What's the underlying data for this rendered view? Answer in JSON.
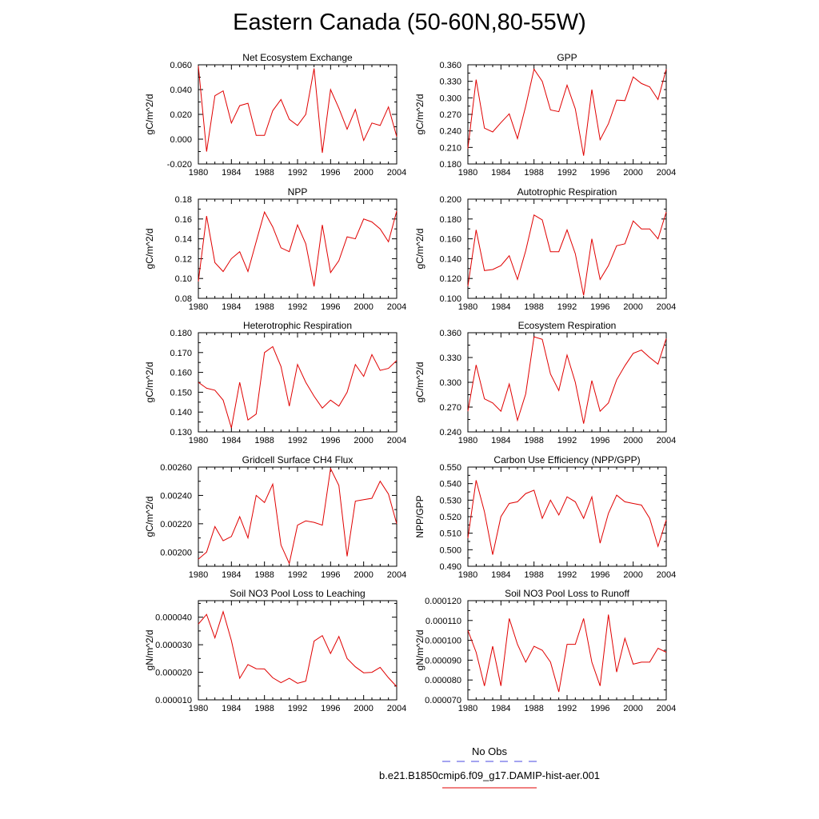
{
  "title": "Eastern Canada (50-60N,80-55W)",
  "legend": {
    "entries": [
      {
        "label": "No Obs",
        "color": "#4a4ae0",
        "dash": true
      },
      {
        "label": "b.e21.B1850cmip6.f09_g17.DAMIP-hist-aer.001",
        "color": "#e00000",
        "dash": false
      }
    ]
  },
  "chart_data": [
    {
      "type": "line",
      "title": "Net Ecosystem Exchange",
      "ylabel": "gC/m^2/d",
      "xlim": [
        1980,
        2004
      ],
      "xticks": [
        "1980",
        "1984",
        "1988",
        "1992",
        "1996",
        "2000",
        "2004"
      ],
      "ylim": [
        -0.02,
        0.06
      ],
      "yticks": [
        "-0.020",
        "0.000",
        "0.020",
        "0.040",
        "0.060"
      ],
      "x": [
        1980,
        1981,
        1982,
        1983,
        1984,
        1985,
        1986,
        1987,
        1988,
        1989,
        1990,
        1991,
        1992,
        1993,
        1994,
        1995,
        1996,
        1997,
        1998,
        1999,
        2000,
        2001,
        2002,
        2003,
        2004
      ],
      "series": [
        {
          "color": "#e00000",
          "values": [
            0.059,
            -0.01,
            0.035,
            0.039,
            0.013,
            0.027,
            0.029,
            0.003,
            0.003,
            0.023,
            0.032,
            0.016,
            0.011,
            0.02,
            0.057,
            -0.011,
            0.04,
            0.025,
            0.008,
            0.024,
            -0.001,
            0.013,
            0.011,
            0.026,
            0.002
          ]
        }
      ]
    },
    {
      "type": "line",
      "title": "GPP",
      "ylabel": "gC/m^2/d",
      "xlim": [
        1980,
        2004
      ],
      "xticks": [
        "1980",
        "1984",
        "1988",
        "1992",
        "1996",
        "2000",
        "2004"
      ],
      "ylim": [
        0.18,
        0.36
      ],
      "yticks": [
        "0.180",
        "0.210",
        "0.240",
        "0.270",
        "0.300",
        "0.330",
        "0.360"
      ],
      "x": [
        1980,
        1981,
        1982,
        1983,
        1984,
        1985,
        1986,
        1987,
        1988,
        1989,
        1990,
        1991,
        1992,
        1993,
        1994,
        1995,
        1996,
        1997,
        1998,
        1999,
        2000,
        2001,
        2002,
        2003,
        2004
      ],
      "series": [
        {
          "color": "#e00000",
          "values": [
            0.208,
            0.333,
            0.245,
            0.238,
            0.255,
            0.271,
            0.226,
            0.285,
            0.352,
            0.33,
            0.278,
            0.275,
            0.323,
            0.28,
            0.195,
            0.315,
            0.224,
            0.253,
            0.296,
            0.295,
            0.338,
            0.326,
            0.32,
            0.297,
            0.352
          ]
        }
      ]
    },
    {
      "type": "line",
      "title": "NPP",
      "ylabel": "gC/m^2/d",
      "xlim": [
        1980,
        2004
      ],
      "xticks": [
        "1980",
        "1984",
        "1988",
        "1992",
        "1996",
        "2000",
        "2004"
      ],
      "ylim": [
        0.08,
        0.18
      ],
      "yticks": [
        "0.08",
        "0.10",
        "0.12",
        "0.14",
        "0.16",
        "0.18"
      ],
      "x": [
        1980,
        1981,
        1982,
        1983,
        1984,
        1985,
        1986,
        1987,
        1988,
        1989,
        1990,
        1991,
        1992,
        1993,
        1994,
        1995,
        1996,
        1997,
        1998,
        1999,
        2000,
        2001,
        2002,
        2003,
        2004
      ],
      "series": [
        {
          "color": "#e00000",
          "values": [
            0.097,
            0.163,
            0.116,
            0.107,
            0.12,
            0.127,
            0.107,
            0.137,
            0.167,
            0.152,
            0.131,
            0.127,
            0.154,
            0.135,
            0.092,
            0.154,
            0.106,
            0.118,
            0.142,
            0.14,
            0.16,
            0.157,
            0.15,
            0.137,
            0.168
          ]
        }
      ]
    },
    {
      "type": "line",
      "title": "Autotrophic Respiration",
      "ylabel": "gC/m^2/d",
      "xlim": [
        1980,
        2004
      ],
      "xticks": [
        "1980",
        "1984",
        "1988",
        "1992",
        "1996",
        "2000",
        "2004"
      ],
      "ylim": [
        0.1,
        0.2
      ],
      "yticks": [
        "0.100",
        "0.120",
        "0.140",
        "0.160",
        "0.180",
        "0.200"
      ],
      "x": [
        1980,
        1981,
        1982,
        1983,
        1984,
        1985,
        1986,
        1987,
        1988,
        1989,
        1990,
        1991,
        1992,
        1993,
        1994,
        1995,
        1996,
        1997,
        1998,
        1999,
        2000,
        2001,
        2002,
        2003,
        2004
      ],
      "series": [
        {
          "color": "#e00000",
          "values": [
            0.112,
            0.169,
            0.128,
            0.129,
            0.133,
            0.143,
            0.119,
            0.148,
            0.184,
            0.179,
            0.147,
            0.147,
            0.169,
            0.145,
            0.103,
            0.16,
            0.119,
            0.133,
            0.153,
            0.155,
            0.178,
            0.17,
            0.17,
            0.16,
            0.187
          ]
        }
      ]
    },
    {
      "type": "line",
      "title": "Heterotrophic Respiration",
      "ylabel": "gC/m^2/d",
      "xlim": [
        1980,
        2004
      ],
      "xticks": [
        "1980",
        "1984",
        "1988",
        "1992",
        "1996",
        "2000",
        "2004"
      ],
      "ylim": [
        0.13,
        0.18
      ],
      "yticks": [
        "0.130",
        "0.140",
        "0.150",
        "0.160",
        "0.170",
        "0.180"
      ],
      "x": [
        1980,
        1981,
        1982,
        1983,
        1984,
        1985,
        1986,
        1987,
        1988,
        1989,
        1990,
        1991,
        1992,
        1993,
        1994,
        1995,
        1996,
        1997,
        1998,
        1999,
        2000,
        2001,
        2002,
        2003,
        2004
      ],
      "series": [
        {
          "color": "#e00000",
          "values": [
            0.155,
            0.152,
            0.151,
            0.146,
            0.132,
            0.155,
            0.136,
            0.139,
            0.17,
            0.173,
            0.163,
            0.143,
            0.164,
            0.155,
            0.148,
            0.142,
            0.146,
            0.143,
            0.15,
            0.164,
            0.158,
            0.169,
            0.161,
            0.162,
            0.166
          ]
        }
      ]
    },
    {
      "type": "line",
      "title": "Ecosystem Respiration",
      "ylabel": "gC/m^2/d",
      "xlim": [
        1980,
        2004
      ],
      "xticks": [
        "1980",
        "1984",
        "1988",
        "1992",
        "1996",
        "2000",
        "2004"
      ],
      "ylim": [
        0.24,
        0.36
      ],
      "yticks": [
        "0.240",
        "0.270",
        "0.300",
        "0.330",
        "0.360"
      ],
      "x": [
        1980,
        1981,
        1982,
        1983,
        1984,
        1985,
        1986,
        1987,
        1988,
        1989,
        1990,
        1991,
        1992,
        1993,
        1994,
        1995,
        1996,
        1997,
        1998,
        1999,
        2000,
        2001,
        2002,
        2003,
        2004
      ],
      "series": [
        {
          "color": "#e00000",
          "values": [
            0.265,
            0.321,
            0.28,
            0.275,
            0.265,
            0.298,
            0.254,
            0.286,
            0.355,
            0.352,
            0.31,
            0.29,
            0.333,
            0.3,
            0.25,
            0.302,
            0.265,
            0.275,
            0.303,
            0.32,
            0.335,
            0.339,
            0.33,
            0.322,
            0.353
          ]
        }
      ]
    },
    {
      "type": "line",
      "title": "Gridcell Surface CH4 Flux",
      "ylabel": "gC/m^2/d",
      "xlim": [
        1980,
        2004
      ],
      "xticks": [
        "1980",
        "1984",
        "1988",
        "1992",
        "1996",
        "2000",
        "2004"
      ],
      "ylim": [
        0.0019,
        0.0026
      ],
      "yticks": [
        "0.00200",
        "0.00220",
        "0.00240",
        "0.00260"
      ],
      "x": [
        1980,
        1981,
        1982,
        1983,
        1984,
        1985,
        1986,
        1987,
        1988,
        1989,
        1990,
        1991,
        1992,
        1993,
        1994,
        1995,
        1996,
        1997,
        1998,
        1999,
        2000,
        2001,
        2002,
        2003,
        2004
      ],
      "series": [
        {
          "color": "#e00000",
          "values": [
            0.00195,
            0.002,
            0.00218,
            0.00208,
            0.00211,
            0.00225,
            0.0021,
            0.0024,
            0.00235,
            0.00248,
            0.00205,
            0.00192,
            0.00219,
            0.00222,
            0.00221,
            0.00219,
            0.00259,
            0.00247,
            0.00197,
            0.00236,
            0.00237,
            0.00238,
            0.0025,
            0.00241,
            0.0022
          ]
        }
      ]
    },
    {
      "type": "line",
      "title": "Carbon Use Efficiency (NPP/GPP)",
      "ylabel": "NPP/GPP",
      "xlim": [
        1980,
        2004
      ],
      "xticks": [
        "1980",
        "1984",
        "1988",
        "1992",
        "1996",
        "2000",
        "2004"
      ],
      "ylim": [
        0.49,
        0.55
      ],
      "yticks": [
        "0.490",
        "0.500",
        "0.510",
        "0.520",
        "0.530",
        "0.540",
        "0.550"
      ],
      "x": [
        1980,
        1981,
        1982,
        1983,
        1984,
        1985,
        1986,
        1987,
        1988,
        1989,
        1990,
        1991,
        1992,
        1993,
        1994,
        1995,
        1996,
        1997,
        1998,
        1999,
        2000,
        2001,
        2002,
        2003,
        2004
      ],
      "series": [
        {
          "color": "#e00000",
          "values": [
            0.507,
            0.542,
            0.523,
            0.497,
            0.52,
            0.528,
            0.529,
            0.534,
            0.536,
            0.519,
            0.53,
            0.521,
            0.532,
            0.529,
            0.519,
            0.532,
            0.504,
            0.522,
            0.533,
            0.529,
            0.528,
            0.527,
            0.519,
            0.502,
            0.518
          ]
        }
      ]
    },
    {
      "type": "line",
      "title": "Soil NO3 Pool Loss to Leaching",
      "ylabel": "gN/m^2/d",
      "xlim": [
        1980,
        2004
      ],
      "xticks": [
        "1980",
        "1984",
        "1988",
        "1992",
        "1996",
        "2000",
        "2004"
      ],
      "ylim": [
        1e-05,
        4.6e-05
      ],
      "yticks": [
        "0.000010",
        "0.000020",
        "0.000030",
        "0.000040"
      ],
      "x": [
        1980,
        1981,
        1982,
        1983,
        1984,
        1985,
        1986,
        1987,
        1988,
        1989,
        1990,
        1991,
        1992,
        1993,
        1994,
        1995,
        1996,
        1997,
        1998,
        1999,
        2000,
        2001,
        2002,
        2003,
        2004
      ],
      "series": [
        {
          "color": "#e00000",
          "values": [
            3.75e-05,
            4.1e-05,
            3.25e-05,
            4.2e-05,
            3.15e-05,
            1.78e-05,
            2.28e-05,
            2.13e-05,
            2.12e-05,
            1.8e-05,
            1.62e-05,
            1.78e-05,
            1.6e-05,
            1.68e-05,
            3.13e-05,
            3.33e-05,
            2.68e-05,
            3.3e-05,
            2.5e-05,
            2.2e-05,
            1.98e-05,
            2e-05,
            2.18e-05,
            1.8e-05,
            1.48e-05
          ]
        }
      ]
    },
    {
      "type": "line",
      "title": "Soil NO3 Pool Loss to Runoff",
      "ylabel": "gN/m^2/d",
      "xlim": [
        1980,
        2004
      ],
      "xticks": [
        "1980",
        "1984",
        "1988",
        "1992",
        "1996",
        "2000",
        "2004"
      ],
      "ylim": [
        7e-05,
        0.00012
      ],
      "yticks": [
        "0.000070",
        "0.000080",
        "0.000090",
        "0.000100",
        "0.000110",
        "0.000120"
      ],
      "x": [
        1980,
        1981,
        1982,
        1983,
        1984,
        1985,
        1986,
        1987,
        1988,
        1989,
        1990,
        1991,
        1992,
        1993,
        1994,
        1995,
        1996,
        1997,
        1998,
        1999,
        2000,
        2001,
        2002,
        2003,
        2004
      ],
      "series": [
        {
          "color": "#e00000",
          "values": [
            0.000105,
            9.4e-05,
            7.7e-05,
            9.7e-05,
            7.7e-05,
            0.000111,
            9.8e-05,
            8.9e-05,
            9.7e-05,
            9.5e-05,
            8.9e-05,
            7.4e-05,
            9.8e-05,
            9.8e-05,
            0.000111,
            8.9e-05,
            7.7e-05,
            0.000113,
            8.4e-05,
            0.000101,
            8.8e-05,
            8.9e-05,
            8.9e-05,
            9.6e-05,
            9.4e-05
          ]
        }
      ]
    }
  ]
}
